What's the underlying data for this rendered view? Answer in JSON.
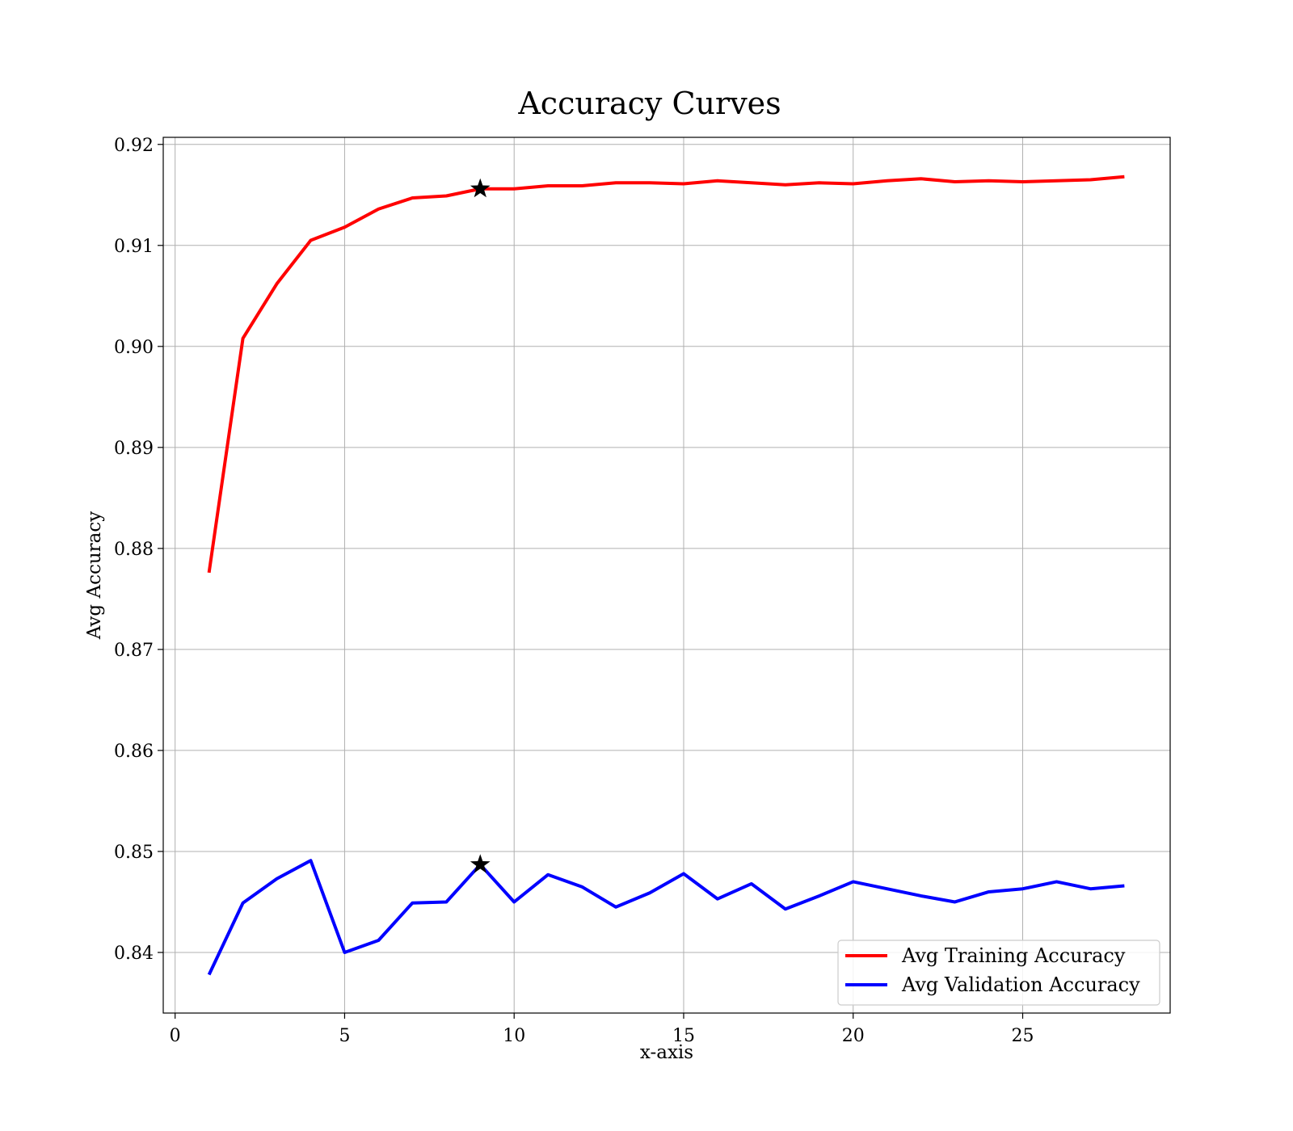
{
  "chart_data": {
    "type": "line",
    "title": "Accuracy Curves",
    "xlabel": "x-axis",
    "ylabel": "Avg Accuracy",
    "xlim": [
      -0.35,
      29.35
    ],
    "ylim": [
      0.834,
      0.9207
    ],
    "xticks": [
      0,
      5,
      10,
      15,
      20,
      25
    ],
    "yticks": [
      0.84,
      0.85,
      0.86,
      0.87,
      0.88,
      0.89,
      0.9,
      0.91,
      0.92
    ],
    "ytick_labels": [
      "0.84",
      "0.85",
      "0.86",
      "0.87",
      "0.88",
      "0.89",
      "0.90",
      "0.91",
      "0.92"
    ],
    "xtick_labels": [
      "0",
      "5",
      "10",
      "15",
      "20",
      "25"
    ],
    "grid": true,
    "legend_position": "lower-right",
    "x": [
      1,
      2,
      3,
      4,
      5,
      6,
      7,
      8,
      9,
      10,
      11,
      12,
      13,
      14,
      15,
      16,
      17,
      18,
      19,
      20,
      21,
      22,
      23,
      24,
      25,
      26,
      27,
      28
    ],
    "series": [
      {
        "name": "Avg Training Accuracy",
        "color": "#ff0000",
        "values": [
          0.8776,
          0.9008,
          0.9062,
          0.9105,
          0.9118,
          0.9136,
          0.9147,
          0.9149,
          0.9156,
          0.9156,
          0.9159,
          0.9159,
          0.9162,
          0.9162,
          0.9161,
          0.9164,
          0.9162,
          0.916,
          0.9162,
          0.9161,
          0.9164,
          0.9166,
          0.9163,
          0.9164,
          0.9163,
          0.9164,
          0.9165,
          0.9168
        ]
      },
      {
        "name": "Avg Validation Accuracy",
        "color": "#0000ff",
        "values": [
          0.8378,
          0.8449,
          0.8473,
          0.8491,
          0.84,
          0.8412,
          0.8449,
          0.845,
          0.8487,
          0.845,
          0.8477,
          0.8465,
          0.8445,
          0.8459,
          0.8478,
          0.8453,
          0.8468,
          0.8443,
          0.8456,
          0.847,
          0.8463,
          0.8456,
          0.845,
          0.846,
          0.8463,
          0.847,
          0.8463,
          0.8466
        ]
      }
    ],
    "markers": [
      {
        "shape": "star",
        "color": "#000000",
        "x": 9,
        "y": 0.9156
      },
      {
        "shape": "star",
        "color": "#000000",
        "x": 9,
        "y": 0.8487
      }
    ]
  }
}
